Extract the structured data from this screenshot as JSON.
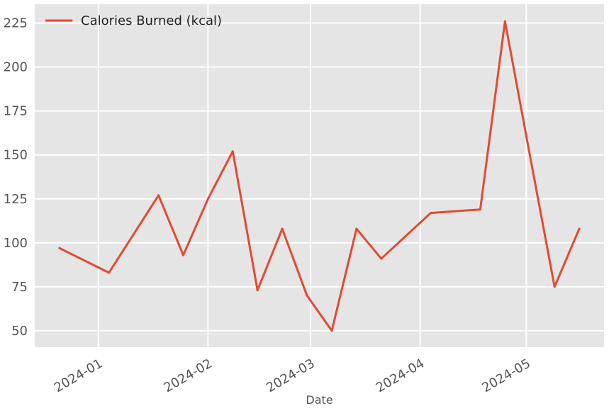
{
  "chart_data": {
    "type": "line",
    "title": "",
    "xlabel": "Date",
    "ylabel": "",
    "x_type": "date",
    "xlim": [
      "2023-12-14",
      "2024-05-23"
    ],
    "ylim": [
      40.7,
      235.7
    ],
    "grid": true,
    "legend_position": "top-left",
    "x_ticks": [
      {
        "date": "2024-01-01",
        "label": "2024-01"
      },
      {
        "date": "2024-02-01",
        "label": "2024-02"
      },
      {
        "date": "2024-03-01",
        "label": "2024-03"
      },
      {
        "date": "2024-04-01",
        "label": "2024-04"
      },
      {
        "date": "2024-05-01",
        "label": "2024-05"
      }
    ],
    "y_ticks": [
      50,
      75,
      100,
      125,
      150,
      175,
      200,
      225
    ],
    "series": [
      {
        "name": "Calories Burned (kcal)",
        "color": "#e24a33",
        "points": [
          {
            "x": "2023-12-21",
            "y": 97
          },
          {
            "x": "2024-01-04",
            "y": 83
          },
          {
            "x": "2024-01-18",
            "y": 127
          },
          {
            "x": "2024-01-25",
            "y": 93
          },
          {
            "x": "2024-02-01",
            "y": 125
          },
          {
            "x": "2024-02-08",
            "y": 152
          },
          {
            "x": "2024-02-15",
            "y": 73
          },
          {
            "x": "2024-02-22",
            "y": 108
          },
          {
            "x": "2024-02-29",
            "y": 70
          },
          {
            "x": "2024-03-07",
            "y": 50
          },
          {
            "x": "2024-03-14",
            "y": 108
          },
          {
            "x": "2024-03-21",
            "y": 91
          },
          {
            "x": "2024-04-04",
            "y": 117
          },
          {
            "x": "2024-04-18",
            "y": 119
          },
          {
            "x": "2024-04-25",
            "y": 226
          },
          {
            "x": "2024-05-02",
            "y": 150
          },
          {
            "x": "2024-05-09",
            "y": 75
          },
          {
            "x": "2024-05-16",
            "y": 108
          }
        ]
      }
    ]
  }
}
